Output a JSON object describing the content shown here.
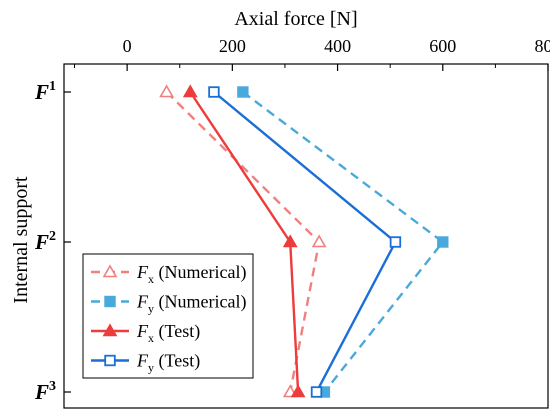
{
  "chart_data": {
    "type": "line",
    "xlabel": "Axial force [N]",
    "ylabel": "Internal support",
    "xlim": [
      -120,
      800
    ],
    "xticks": [
      0,
      200,
      400,
      600,
      800
    ],
    "x_axis_position": "top",
    "grid": false,
    "legend_placement": "bottom-left",
    "categories": [
      {
        "base": "F",
        "sup": "1"
      },
      {
        "base": "F",
        "sup": "2"
      },
      {
        "base": "F",
        "sup": "3"
      }
    ],
    "series": [
      {
        "name_base": "F",
        "name_sub": "x",
        "name_suffix": " (Numerical)",
        "values": [
          75,
          365,
          310
        ],
        "color": "#f08080",
        "dash": true,
        "marker": "triangle-open"
      },
      {
        "name_base": "F",
        "name_sub": "y",
        "name_suffix": " (Numerical)",
        "values": [
          220,
          600,
          375
        ],
        "color": "#4aa9dc",
        "dash": true,
        "marker": "square-filled"
      },
      {
        "name_base": "F",
        "name_sub": "x",
        "name_suffix": " (Test)",
        "values": [
          120,
          310,
          325
        ],
        "color": "#ee3b3b",
        "dash": false,
        "marker": "triangle-filled"
      },
      {
        "name_base": "F",
        "name_sub": "y",
        "name_suffix": " (Test)",
        "values": [
          165,
          510,
          360
        ],
        "color": "#1a6fd6",
        "dash": false,
        "marker": "square-open"
      }
    ]
  }
}
